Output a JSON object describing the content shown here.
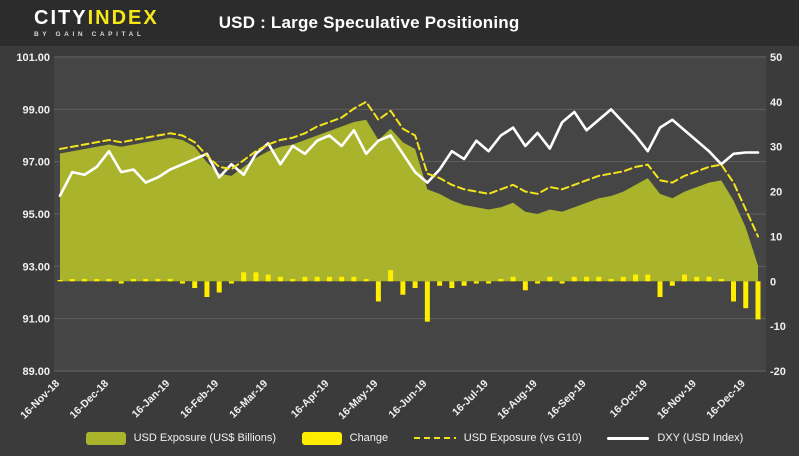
{
  "header": {
    "logo": {
      "brand_part1": "CITY",
      "brand_part2": "INDEX",
      "tagline": "BY GAIN CAPITAL"
    },
    "title": "USD : Large Speculative Positioning"
  },
  "colors": {
    "background": "#3b3b3b",
    "header_background": "#2c2c2c",
    "plot_background": "#454545",
    "gridline": "#5f5f5f",
    "axis_text": "#f0f0f0",
    "area": "#a9b32b",
    "bar": "#ffee00",
    "dashed_line": "#f2e41c",
    "dxy_line": "#ffffff"
  },
  "chart_data": {
    "type": "mixed",
    "title": "USD : Large Speculative Positioning",
    "grid": "horizontal",
    "legend_position": "bottom",
    "x_tick_labels": [
      "16-Nov-18",
      "16-Dec-18",
      "16-Jan-19",
      "16-Feb-19",
      "16-Mar-19",
      "16-Apr-19",
      "16-May-19",
      "16-Jun-19",
      "16-Jul-19",
      "16-Aug-19",
      "16-Sep-19",
      "16-Oct-19",
      "16-Nov-19",
      "16-Dec-19"
    ],
    "x_tick_indices": [
      0,
      4,
      9,
      13,
      17,
      22,
      26,
      30,
      35,
      39,
      43,
      48,
      52,
      56
    ],
    "dates": [
      "16-Nov-18",
      "23-Nov-18",
      "30-Nov-18",
      "07-Dec-18",
      "14-Dec-18",
      "21-Dec-18",
      "28-Dec-18",
      "04-Jan-19",
      "11-Jan-19",
      "18-Jan-19",
      "25-Jan-19",
      "01-Feb-19",
      "08-Feb-19",
      "15-Feb-19",
      "22-Feb-19",
      "01-Mar-19",
      "08-Mar-19",
      "15-Mar-19",
      "22-Mar-19",
      "29-Mar-19",
      "05-Apr-19",
      "12-Apr-19",
      "19-Apr-19",
      "26-Apr-19",
      "03-May-19",
      "10-May-19",
      "17-May-19",
      "24-May-19",
      "31-May-19",
      "07-Jun-19",
      "14-Jun-19",
      "21-Jun-19",
      "28-Jun-19",
      "05-Jul-19",
      "12-Jul-19",
      "19-Jul-19",
      "26-Jul-19",
      "02-Aug-19",
      "09-Aug-19",
      "16-Aug-19",
      "23-Aug-19",
      "30-Aug-19",
      "06-Sep-19",
      "13-Sep-19",
      "20-Sep-19",
      "27-Sep-19",
      "04-Oct-19",
      "11-Oct-19",
      "18-Oct-19",
      "25-Oct-19",
      "01-Nov-19",
      "08-Nov-19",
      "15-Nov-19",
      "22-Nov-19",
      "29-Nov-19",
      "06-Dec-19",
      "13-Dec-19",
      "20-Dec-19"
    ],
    "left_axis": {
      "min": 89,
      "max": 101,
      "step": 2,
      "tick_labels": [
        "101.00",
        "99.00",
        "97.00",
        "95.00",
        "93.00",
        "91.00",
        "89.00"
      ]
    },
    "right_axis": {
      "min": -20,
      "max": 50,
      "step": 10,
      "tick_labels": [
        "50",
        "40",
        "30",
        "20",
        "10",
        "0",
        "-10",
        "-20"
      ]
    },
    "series": [
      {
        "name": "USD Exposure (US$ Billions)",
        "type": "area",
        "axis": "right",
        "color": "#a9b32b",
        "values": [
          28.5,
          29.0,
          29.5,
          30.0,
          30.5,
          30.0,
          30.5,
          31.0,
          31.5,
          32.0,
          31.5,
          30.0,
          26.5,
          24.0,
          23.5,
          25.5,
          27.5,
          29.0,
          30.0,
          30.5,
          31.5,
          32.5,
          33.5,
          34.5,
          35.5,
          36.0,
          31.5,
          34.0,
          31.0,
          29.5,
          20.5,
          19.5,
          18.0,
          17.0,
          16.5,
          16.0,
          16.5,
          17.5,
          15.5,
          15.0,
          16.0,
          15.5,
          16.5,
          17.5,
          18.5,
          19.0,
          20.0,
          21.5,
          23.0,
          19.5,
          18.5,
          20.0,
          21.0,
          22.0,
          22.5,
          18.0,
          12.0,
          3.5
        ]
      },
      {
        "name": "Change",
        "type": "bar",
        "axis": "right",
        "color": "#ffee00",
        "values": [
          0.3,
          0.5,
          0.5,
          0.5,
          0.5,
          -0.5,
          0.5,
          0.5,
          0.5,
          0.5,
          -0.5,
          -1.5,
          -3.5,
          -2.5,
          -0.5,
          2.0,
          2.0,
          1.5,
          1.0,
          0.5,
          1.0,
          1.0,
          1.0,
          1.0,
          1.0,
          0.5,
          -4.5,
          2.5,
          -3.0,
          -1.5,
          -9.0,
          -1.0,
          -1.5,
          -1.0,
          -0.5,
          -0.5,
          0.5,
          1.0,
          -2.0,
          -0.5,
          1.0,
          -0.5,
          1.0,
          1.0,
          1.0,
          0.5,
          1.0,
          1.5,
          1.5,
          -3.5,
          -1.0,
          1.5,
          1.0,
          1.0,
          0.5,
          -4.5,
          -6.0,
          -8.5
        ]
      },
      {
        "name": "USD Exposure (vs G10)",
        "type": "line-dashed",
        "axis": "right",
        "color": "#f2e41c",
        "values": [
          29.5,
          30.0,
          30.5,
          31.0,
          31.5,
          31.0,
          31.5,
          32.0,
          32.5,
          33.0,
          32.5,
          31.0,
          28.0,
          25.5,
          25.0,
          27.0,
          29.0,
          30.5,
          31.5,
          32.0,
          33.0,
          34.5,
          35.5,
          36.5,
          38.5,
          40.0,
          36.0,
          38.0,
          34.0,
          32.5,
          24.0,
          23.0,
          21.5,
          20.5,
          20.0,
          19.5,
          20.5,
          21.5,
          20.0,
          19.5,
          21.0,
          20.5,
          21.5,
          22.5,
          23.5,
          24.0,
          24.5,
          25.5,
          26.0,
          22.5,
          22.0,
          23.5,
          24.5,
          25.5,
          26.0,
          22.0,
          16.0,
          10.0
        ]
      },
      {
        "name": "DXY (USD Index)",
        "type": "line",
        "axis": "left",
        "color": "#ffffff",
        "values": [
          95.7,
          96.6,
          96.5,
          96.8,
          97.4,
          96.6,
          96.7,
          96.2,
          96.4,
          96.7,
          96.9,
          97.1,
          97.3,
          96.4,
          96.9,
          96.5,
          97.3,
          97.7,
          96.9,
          97.6,
          97.3,
          97.8,
          98.0,
          97.6,
          98.2,
          97.3,
          97.8,
          98.0,
          97.3,
          96.6,
          96.2,
          96.7,
          97.4,
          97.1,
          97.8,
          97.4,
          98.0,
          98.3,
          97.6,
          98.1,
          97.5,
          98.5,
          98.9,
          98.2,
          98.6,
          99.0,
          98.5,
          98.0,
          97.4,
          98.3,
          98.6,
          98.2,
          97.8,
          97.4,
          96.9,
          97.3,
          97.35,
          97.35
        ]
      }
    ]
  }
}
